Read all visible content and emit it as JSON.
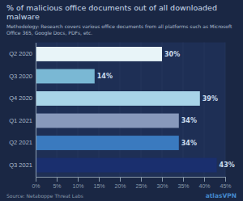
{
  "chart_data": {
    "type": "bar",
    "orientation": "horizontal",
    "title": "% of malicious office documents out of all downloaded malware",
    "annotations": [
      "Methodology: Research covers various office documents from all platforms such as Microsoft\nOffice 365, Google Docs, PDFs, etc.",
      "Source: Netaboppe Threat Labs",
      "atlasVPN"
    ],
    "categories": [
      "Q2 2020",
      "Q3 2020",
      "Q4 2020",
      "Q1 2021",
      "Q2 2021",
      "Q3 2021"
    ],
    "values": [
      30,
      14,
      39,
      34,
      34,
      43
    ],
    "value_labels": [
      "30%",
      "14%",
      "39%",
      "34%",
      "34%",
      "43%"
    ],
    "data_labels": true,
    "colors": [
      "#e8f4f8",
      "#7ab8d4",
      "#a8d4e8",
      "#8899bb",
      "#3a7abf",
      "#1a2f6e"
    ],
    "xlim": [
      0,
      45
    ],
    "xticks": [
      {
        "value": 0,
        "label": "0%"
      },
      {
        "value": 5,
        "label": "5%"
      },
      {
        "value": 10,
        "label": "10%"
      },
      {
        "value": 15,
        "label": "15%"
      },
      {
        "value": 20,
        "label": "20%"
      },
      {
        "value": 25,
        "label": "25%"
      },
      {
        "value": 30,
        "label": "30%"
      },
      {
        "value": 35,
        "label": "35%"
      },
      {
        "value": 40,
        "label": "40%"
      },
      {
        "value": 45,
        "label": "45%"
      }
    ],
    "grid": true
  }
}
